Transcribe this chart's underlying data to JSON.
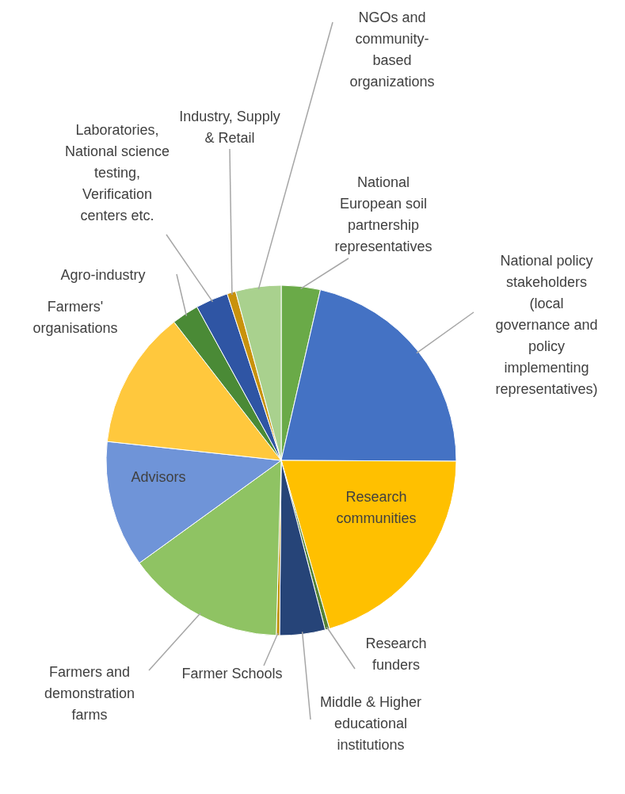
{
  "chart_data": {
    "type": "pie",
    "categories": [
      "National European soil partnership representatives",
      "National policy stakeholders (local governance and policy implementing representatives)",
      "Research communities",
      "Research funders",
      "Middle & Higher educational institutions",
      "Farmer Schools",
      "Farmers and demonstration farms",
      "Advisors",
      "Farmers' organisations",
      "Agro-industry",
      "Laboratories, National science testing, Verification centers etc.",
      "Industry, Supply & Retail",
      "NGOs and community-based organizations"
    ],
    "values": [
      3.6,
      21.5,
      20.5,
      0.4,
      4.2,
      0.3,
      14.6,
      11.7,
      12.8,
      2.5,
      3,
      0.8,
      4.2
    ],
    "colors": [
      "#6aaa48",
      "#4472c4",
      "#ffc000",
      "#548235",
      "#264478",
      "#bf8f00",
      "#8fc363",
      "#6f94d8",
      "#ffc83d",
      "#4a8a36",
      "#2f55a4",
      "#c9920c",
      "#a9d18e"
    ]
  }
}
